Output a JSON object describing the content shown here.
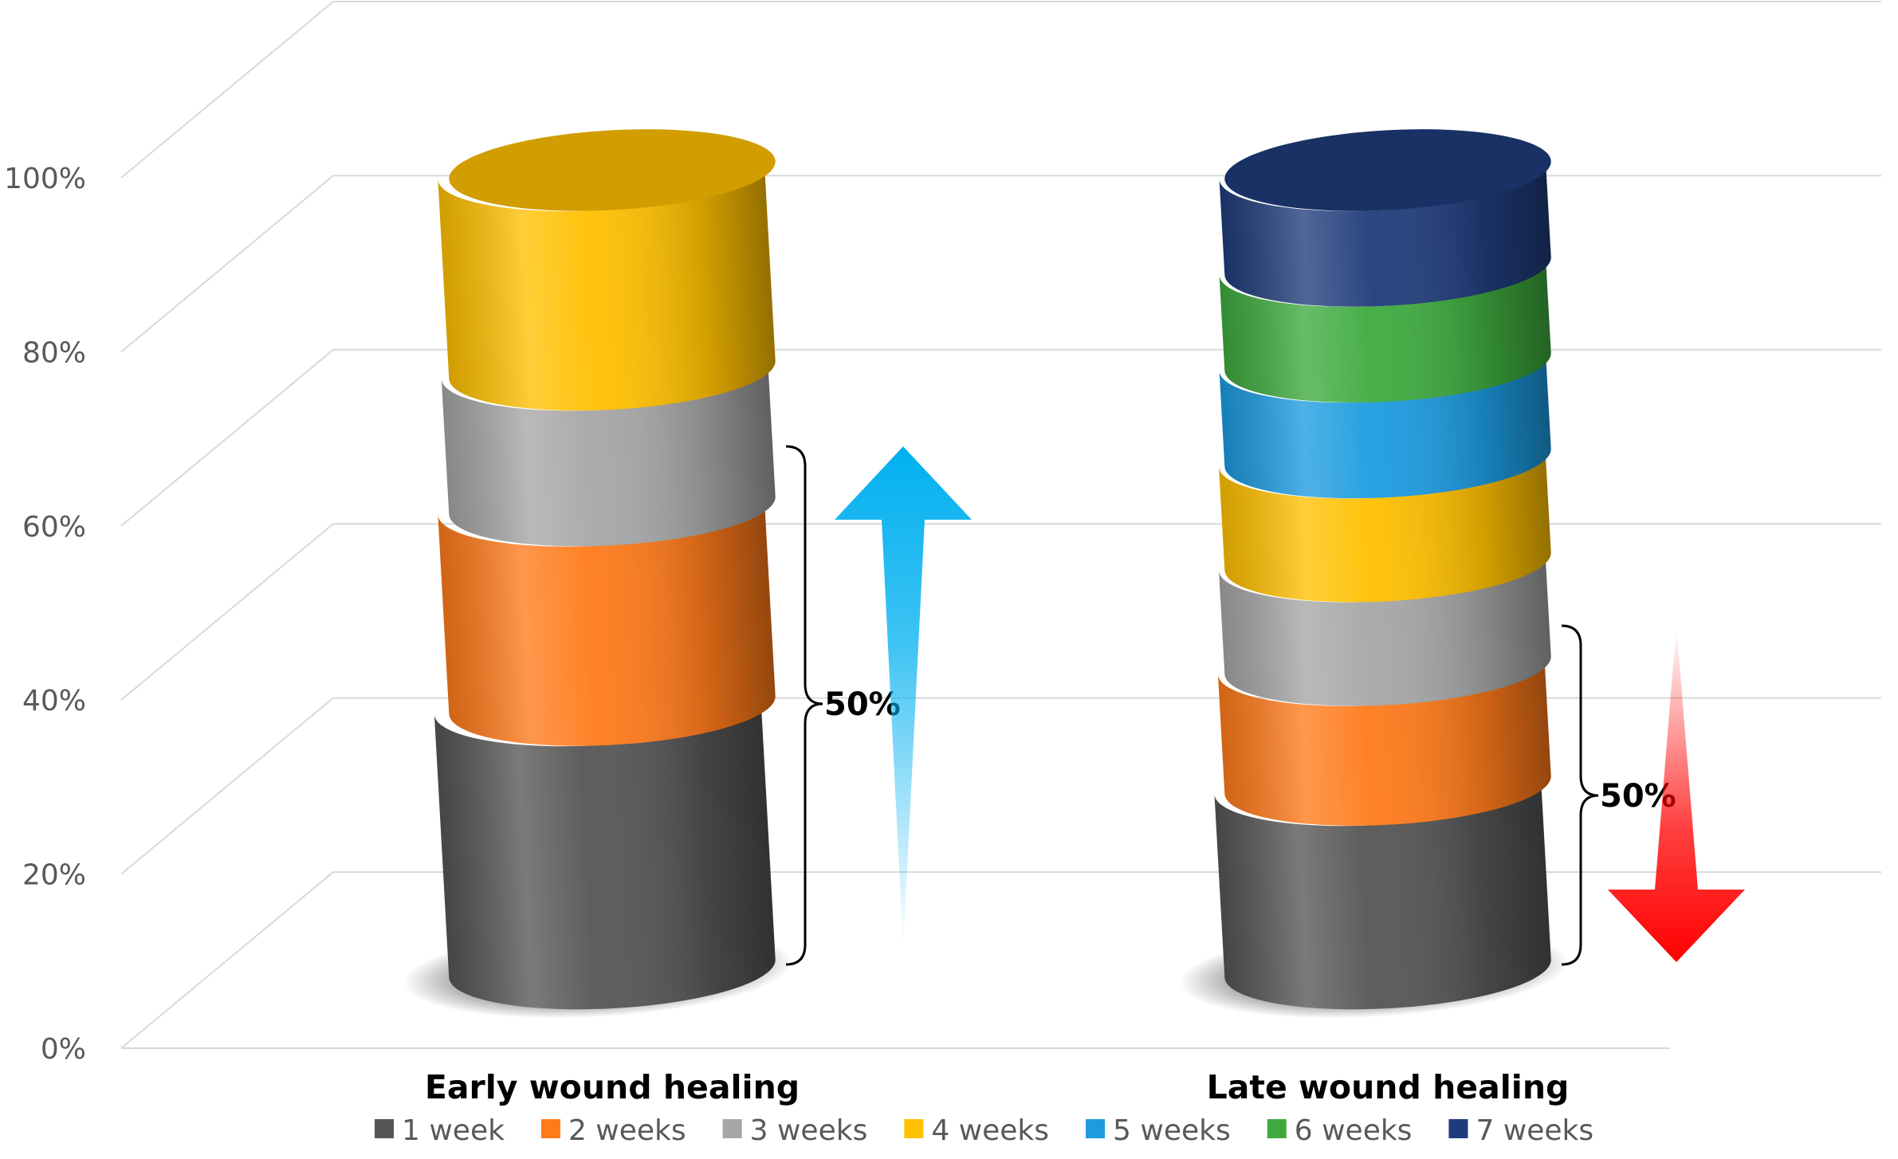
{
  "chart_data": {
    "type": "bar",
    "stacked": true,
    "style": "3d-cylinder",
    "categories": [
      "Early wound healing",
      "Late wound healing"
    ],
    "series": [
      {
        "name": "1 week",
        "color": "#555555",
        "values": [
          33,
          23
        ]
      },
      {
        "name": "2 weeks",
        "color": "#FF7A1A",
        "values": [
          25,
          15
        ]
      },
      {
        "name": "3 weeks",
        "color": "#A6A6A6",
        "values": [
          17,
          13
        ]
      },
      {
        "name": "4 weeks",
        "color": "#FFC000",
        "values": [
          25,
          13
        ]
      },
      {
        "name": "5 weeks",
        "color": "#1C9BE0",
        "values": [
          0,
          12
        ]
      },
      {
        "name": "6 weeks",
        "color": "#3EAA3E",
        "values": [
          0,
          12
        ]
      },
      {
        "name": "7 weeks",
        "color": "#1F3C7A",
        "values": [
          0,
          12
        ]
      }
    ],
    "y_ticks": [
      "0%",
      "20%",
      "40%",
      "60%",
      "80%",
      "100%"
    ],
    "ylim": [
      0,
      100
    ],
    "grid": true,
    "legend": "bottom",
    "annotations": [
      {
        "text": "50%",
        "category": "Early wound healing",
        "arrow": "up",
        "color": "#00B0F0"
      },
      {
        "text": "50%",
        "category": "Late wound healing",
        "arrow": "down",
        "color": "#FF0000"
      }
    ]
  }
}
